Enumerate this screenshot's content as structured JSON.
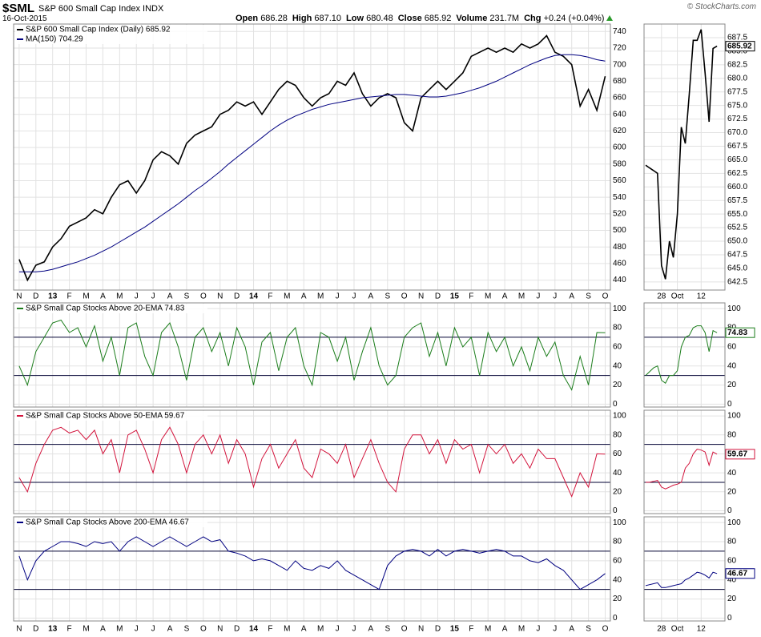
{
  "header": {
    "symbol": "$SML",
    "name": "S&P 600 Small Cap Index",
    "exchange": "INDX",
    "date": "16-Oct-2015",
    "quote": [
      {
        "label": "Open",
        "value": "686.28"
      },
      {
        "label": "High",
        "value": "687.10"
      },
      {
        "label": "Low",
        "value": "680.48"
      },
      {
        "label": "Close",
        "value": "685.92"
      },
      {
        "label": "Volume",
        "value": "231.7M"
      },
      {
        "label": "Chg",
        "value": "+0.24 (+0.04%)"
      }
    ],
    "credit": "© StockCharts.com"
  },
  "chart_data": [
    {
      "type": "line",
      "x": [
        0,
        0.5,
        1,
        1.5,
        2,
        2.5,
        3,
        3.5,
        4,
        4.5,
        5,
        5.5,
        6,
        6.5,
        7,
        7.5,
        8,
        8.5,
        9,
        9.5,
        10,
        10.5,
        11,
        11.5,
        12,
        12.5,
        13,
        13.5,
        14,
        14.5,
        15,
        15.5,
        16,
        16.5,
        17,
        17.5,
        18,
        18.5,
        19,
        19.5,
        20,
        20.5,
        21,
        21.5,
        22,
        22.5,
        23,
        23.5,
        24,
        24.5,
        25,
        25.5,
        26,
        26.5,
        27,
        27.5,
        28,
        28.5,
        29,
        29.5,
        30,
        30.5,
        31,
        31.5,
        32,
        32.5,
        33,
        33.5,
        34,
        34.5,
        35
      ],
      "xlim": [
        -0.33,
        35.31
      ],
      "xticks": [
        {
          "value": 0,
          "label": "N"
        },
        {
          "value": 1,
          "label": "D"
        },
        {
          "value": 2,
          "label": "13"
        },
        {
          "value": 3,
          "label": "F"
        },
        {
          "value": 4,
          "label": "M"
        },
        {
          "value": 5,
          "label": "A"
        },
        {
          "value": 6,
          "label": "M"
        },
        {
          "value": 7,
          "label": "J"
        },
        {
          "value": 8,
          "label": "J"
        },
        {
          "value": 9,
          "label": "A"
        },
        {
          "value": 10,
          "label": "S"
        },
        {
          "value": 11,
          "label": "O"
        },
        {
          "value": 12,
          "label": "N"
        },
        {
          "value": 13,
          "label": "D"
        },
        {
          "value": 14,
          "label": "14"
        },
        {
          "value": 15,
          "label": "F"
        },
        {
          "value": 16,
          "label": "M"
        },
        {
          "value": 17,
          "label": "A"
        },
        {
          "value": 18,
          "label": "M"
        },
        {
          "value": 19,
          "label": "J"
        },
        {
          "value": 20,
          "label": "J"
        },
        {
          "value": 21,
          "label": "A"
        },
        {
          "value": 22,
          "label": "S"
        },
        {
          "value": 23,
          "label": "O"
        },
        {
          "value": 24,
          "label": "N"
        },
        {
          "value": 25,
          "label": "D"
        },
        {
          "value": 26,
          "label": "15"
        },
        {
          "value": 27,
          "label": "F"
        },
        {
          "value": 28,
          "label": "M"
        },
        {
          "value": 29,
          "label": "A"
        },
        {
          "value": 30,
          "label": "M"
        },
        {
          "value": 31,
          "label": "J"
        },
        {
          "value": 32,
          "label": "J"
        },
        {
          "value": 33,
          "label": "A"
        },
        {
          "value": 34,
          "label": "S"
        },
        {
          "value": 35,
          "label": "O"
        }
      ],
      "ylim": [
        428,
        749
      ],
      "yticks": [
        440,
        460,
        480,
        500,
        520,
        540,
        560,
        580,
        600,
        620,
        640,
        660,
        680,
        700,
        720,
        740
      ],
      "grid": true,
      "series": [
        {
          "name": "S&P 600 Small Cap Index (Daily) 685.92",
          "color": "#000000",
          "values": [
            465,
            440,
            458,
            462,
            480,
            490,
            505,
            510,
            515,
            525,
            520,
            540,
            555,
            560,
            545,
            560,
            585,
            595,
            590,
            580,
            605,
            615,
            620,
            625,
            640,
            645,
            655,
            650,
            655,
            640,
            655,
            670,
            680,
            675,
            660,
            650,
            660,
            665,
            680,
            675,
            690,
            665,
            650,
            660,
            665,
            660,
            630,
            620,
            660,
            670,
            680,
            670,
            680,
            690,
            710,
            715,
            720,
            715,
            720,
            715,
            725,
            720,
            725,
            735,
            715,
            710,
            700,
            650,
            670,
            645,
            685.92
          ]
        },
        {
          "name": "MA(150) 704.29",
          "color": "#000080",
          "values": [
            450,
            450,
            450,
            451,
            453,
            456,
            459,
            462,
            466,
            470,
            475,
            480,
            486,
            492,
            498,
            504,
            511,
            518,
            525,
            532,
            540,
            548,
            555,
            563,
            571,
            580,
            588,
            596,
            604,
            612,
            620,
            627,
            633,
            638,
            642,
            646,
            649,
            652,
            654,
            656,
            658,
            660,
            661,
            662,
            663,
            664,
            664,
            663,
            662,
            661,
            661,
            662,
            664,
            666,
            669,
            672,
            676,
            680,
            685,
            690,
            695,
            700,
            704,
            708,
            711,
            712,
            712,
            711,
            709,
            706,
            704.29
          ]
        }
      ]
    },
    {
      "type": "line",
      "ylim": [
        -3,
        106
      ],
      "yticks": [
        0,
        20,
        40,
        60,
        80,
        100
      ],
      "reference_lines": [
        30,
        70
      ],
      "grid": true,
      "series": [
        {
          "name": "S&P Small Cap Stocks Above 20-EMA 74.83",
          "color": "#1b7d1b",
          "values": [
            40,
            20,
            55,
            70,
            85,
            88,
            75,
            80,
            60,
            82,
            45,
            70,
            30,
            80,
            85,
            50,
            30,
            75,
            85,
            60,
            25,
            70,
            80,
            55,
            75,
            40,
            80,
            60,
            20,
            65,
            75,
            35,
            70,
            80,
            40,
            20,
            75,
            70,
            45,
            70,
            25,
            55,
            80,
            40,
            20,
            30,
            70,
            80,
            85,
            50,
            75,
            40,
            80,
            60,
            70,
            30,
            75,
            55,
            70,
            40,
            60,
            35,
            70,
            50,
            65,
            30,
            15,
            50,
            20,
            75,
            74.83
          ]
        }
      ]
    },
    {
      "type": "line",
      "ylim": [
        -3,
        106
      ],
      "yticks": [
        0,
        20,
        40,
        60,
        80,
        100
      ],
      "reference_lines": [
        30,
        70
      ],
      "grid": true,
      "series": [
        {
          "name": "S&P Small Cap Stocks Above 50-EMA 59.67",
          "color": "#d2143c",
          "values": [
            35,
            20,
            50,
            70,
            85,
            88,
            82,
            85,
            75,
            85,
            60,
            75,
            40,
            80,
            85,
            65,
            40,
            75,
            88,
            70,
            40,
            70,
            80,
            60,
            80,
            50,
            75,
            60,
            25,
            55,
            70,
            45,
            60,
            75,
            45,
            35,
            65,
            60,
            50,
            70,
            35,
            55,
            75,
            50,
            30,
            20,
            65,
            80,
            80,
            60,
            75,
            50,
            75,
            65,
            70,
            40,
            70,
            60,
            70,
            50,
            60,
            45,
            65,
            55,
            55,
            35,
            15,
            40,
            25,
            60,
            59.67
          ]
        }
      ]
    },
    {
      "type": "line",
      "ylim": [
        -3,
        106
      ],
      "yticks": [
        0,
        20,
        40,
        60,
        80,
        100
      ],
      "reference_lines": [
        30,
        70
      ],
      "grid": true,
      "series": [
        {
          "name": "S&P Small Cap Stocks Above 200-EMA 46.67",
          "color": "#000080",
          "values": [
            65,
            40,
            60,
            70,
            75,
            80,
            80,
            78,
            75,
            80,
            78,
            80,
            70,
            80,
            85,
            80,
            75,
            80,
            85,
            80,
            75,
            80,
            85,
            80,
            82,
            70,
            68,
            65,
            60,
            62,
            60,
            55,
            50,
            60,
            52,
            50,
            55,
            52,
            60,
            50,
            45,
            40,
            35,
            30,
            55,
            65,
            70,
            72,
            70,
            65,
            72,
            65,
            70,
            72,
            70,
            68,
            70,
            72,
            70,
            65,
            65,
            60,
            58,
            62,
            55,
            50,
            40,
            30,
            35,
            40,
            46.67
          ]
        }
      ]
    },
    {
      "type": "line",
      "x": [
        0,
        1,
        2,
        3,
        4,
        5,
        6,
        7,
        8,
        9,
        10,
        11,
        12,
        13,
        14,
        15,
        16,
        17,
        18
      ],
      "xlim": [
        -0.4,
        20
      ],
      "xticks": [
        {
          "value": 4,
          "label": "28"
        },
        {
          "value": 8,
          "label": "Oct"
        },
        {
          "value": 14,
          "label": "12"
        }
      ],
      "ylim": [
        641,
        690
      ],
      "yticks": [
        642.5,
        {
          "value": 645,
          "label": "645.0"
        },
        647.5,
        {
          "value": 650,
          "label": "650.0"
        },
        652.5,
        {
          "value": 655,
          "label": "655.0"
        },
        657.5,
        {
          "value": 660,
          "label": "660.0"
        },
        662.5,
        {
          "value": 665,
          "label": "665.0"
        },
        667.5,
        {
          "value": 670,
          "label": "670.0"
        },
        672.5,
        {
          "value": 675,
          "label": "675.0"
        },
        677.5,
        {
          "value": 680,
          "label": "680.0"
        },
        682.5,
        {
          "value": 685,
          "label": "685.0"
        },
        687.5
      ],
      "grid": true,
      "series": [
        {
          "color": "#000000",
          "values": [
            664,
            663.5,
            663,
            662.5,
            645.5,
            643,
            650,
            647,
            655,
            671,
            668,
            677,
            687,
            687,
            689,
            681,
            672,
            685.5,
            685.92
          ]
        }
      ]
    },
    {
      "type": "line",
      "ylim": [
        -3,
        106
      ],
      "yticks": [
        0,
        20,
        40,
        60,
        80,
        100
      ],
      "reference_lines": [
        30,
        70
      ],
      "grid": true,
      "series": [
        {
          "color": "#1b7d1b",
          "values": [
            30,
            34,
            38,
            40,
            25,
            22,
            30,
            30,
            35,
            60,
            70,
            72,
            80,
            82,
            82,
            75,
            55,
            77,
            74.83
          ]
        }
      ]
    },
    {
      "type": "line",
      "ylim": [
        -3,
        106
      ],
      "yticks": [
        0,
        20,
        40,
        60,
        80,
        100
      ],
      "reference_lines": [
        30,
        70
      ],
      "grid": true,
      "series": [
        {
          "color": "#d2143c",
          "values": [
            30,
            30,
            31,
            32,
            25,
            23,
            25,
            27,
            28,
            30,
            45,
            50,
            60,
            65,
            64,
            62,
            48,
            62,
            59.67
          ]
        }
      ]
    },
    {
      "type": "line",
      "ylim": [
        -3,
        106
      ],
      "yticks": [
        0,
        20,
        40,
        60,
        80,
        100
      ],
      "reference_lines": [
        30,
        70
      ],
      "grid": true,
      "series": [
        {
          "color": "#000080",
          "values": [
            34,
            35,
            36,
            37,
            32,
            32,
            33,
            34,
            35,
            36,
            40,
            42,
            45,
            48,
            47,
            45,
            42,
            48,
            46.67
          ]
        }
      ]
    }
  ]
}
